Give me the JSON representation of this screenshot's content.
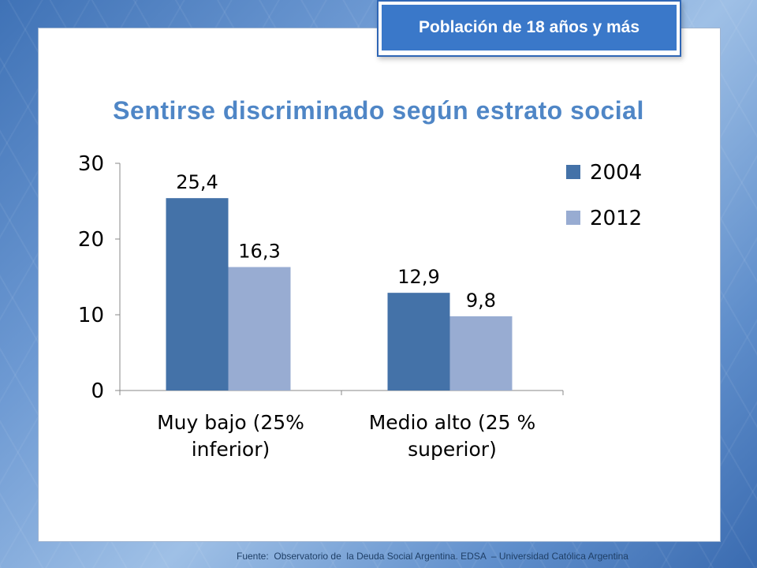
{
  "badge": "Población de 18 años y más",
  "title": "Sentirse discriminado según estrato social",
  "footer": "Fuente:  Observatorio de  la Deuda Social Argentina. EDSA  – Universidad Católica Argentina",
  "chart_data": {
    "type": "bar",
    "title": "Sentirse discriminado según estrato social",
    "categories": [
      [
        "Muy bajo (25%",
        "inferior)"
      ],
      [
        "Medio alto (25 %",
        "superior)"
      ]
    ],
    "series": [
      {
        "name": "2004",
        "values": [
          25.4,
          12.9
        ],
        "labels": [
          "25,4",
          "12,9"
        ],
        "color": "#4472a8"
      },
      {
        "name": "2012",
        "values": [
          16.3,
          9.8
        ],
        "labels": [
          "16,3",
          "9,8"
        ],
        "color": "#98acd2"
      }
    ],
    "ylim": [
      0,
      30
    ],
    "yticks": [
      0,
      10,
      20,
      30
    ],
    "legend": "right",
    "grid": false
  }
}
